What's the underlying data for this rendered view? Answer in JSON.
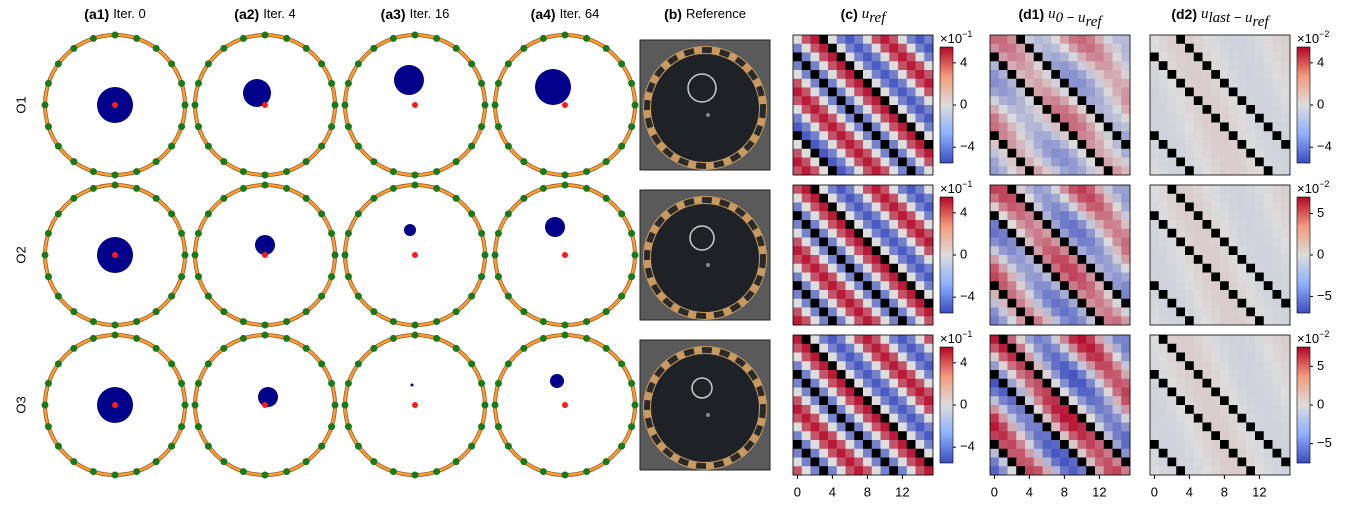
{
  "figure": {
    "columns": [
      {
        "tag": "(a1)",
        "label": "Iter. 0"
      },
      {
        "tag": "(a2)",
        "label": "Iter. 4"
      },
      {
        "tag": "(a3)",
        "label": "Iter. 16"
      },
      {
        "tag": "(a4)",
        "label": "Iter. 64"
      },
      {
        "tag": "(b)",
        "label": "Reference"
      },
      {
        "tag": "(c)",
        "parts": [
          {
            "text": "u",
            "sub": "ref"
          }
        ]
      },
      {
        "tag": "(d1)",
        "parts": [
          {
            "text": "u",
            "sub": "0"
          },
          {
            "text": " − "
          },
          {
            "text": "u",
            "sub": "ref"
          }
        ]
      },
      {
        "tag": "(d2)",
        "parts": [
          {
            "text": "u",
            "sub": "last"
          },
          {
            "text": " − "
          },
          {
            "text": "u",
            "sub": "ref"
          }
        ]
      }
    ],
    "rows": [
      "O1",
      "O2",
      "O3"
    ],
    "colorbars": [
      {
        "c": {
          "base": "×10",
          "exponent": "−1",
          "lim": [
            -5.5,
            5.5
          ],
          "ticks": [
            4,
            0,
            {
              "value": -4,
              "label": "−4"
            }
          ]
        },
        "d": {
          "base": "×10",
          "exponent": "−2",
          "lim": [
            -5.5,
            5.5
          ],
          "ticks": [
            4,
            0,
            {
              "value": -4,
              "label": "−4"
            }
          ]
        }
      },
      {
        "c": {
          "base": "×10",
          "exponent": "−1",
          "lim": [
            -5.5,
            5.5
          ],
          "ticks": [
            4,
            0,
            {
              "value": -4,
              "label": "−4"
            }
          ]
        },
        "d": {
          "base": "×10",
          "exponent": "−2",
          "lim": [
            -7,
            7
          ],
          "ticks": [
            5,
            0,
            {
              "value": -5,
              "label": "−5"
            }
          ]
        }
      },
      {
        "c": {
          "base": "×10",
          "exponent": "−1",
          "lim": [
            -5.5,
            5.5
          ],
          "ticks": [
            4,
            0,
            {
              "value": -4,
              "label": "−4"
            }
          ]
        },
        "d": {
          "base": "×10",
          "exponent": "−2",
          "lim": [
            -7.5,
            7.5
          ],
          "ticks": [
            5,
            0,
            {
              "value": -5,
              "label": "−5"
            }
          ]
        }
      }
    ],
    "heatmap_x": {
      "xlim": [
        -0.5,
        15.5
      ],
      "xticks": [
        0,
        4,
        8,
        12
      ]
    }
  }
}
